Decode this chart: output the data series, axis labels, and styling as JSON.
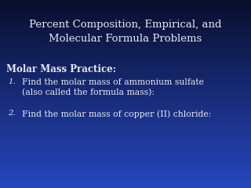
{
  "title_text": "Percent Composition, Empirical, and\nMolecular Formula Problems",
  "section_header": "Molar Mass Practice:",
  "item1_num": "1.",
  "item1_line1": "Find the molar mass of ammonium sulfate",
  "item1_line2": "(also called the formula mass):",
  "item2_num": "2.",
  "item2_line1": "Find the molar mass of copper (II) chloride:",
  "text_color": "#e8e8f0",
  "bg_top": "#0a0f2e",
  "bg_mid": "#1030a0",
  "bg_bot": "#2244cc",
  "title_fontsize": 9.5,
  "header_fontsize": 8.5,
  "body_fontsize": 7.8
}
